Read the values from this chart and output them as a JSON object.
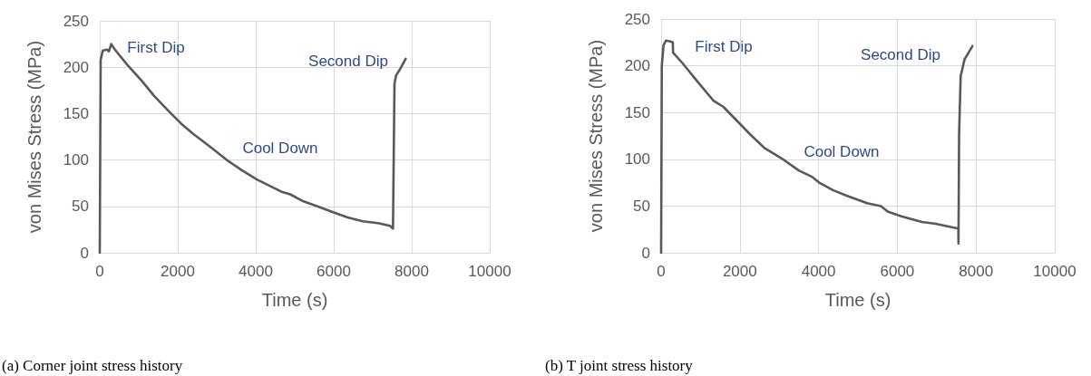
{
  "chart_data": [
    {
      "type": "line",
      "xlabel": "Time (s)",
      "ylabel": "von Mises Stress (MPa)",
      "xlim": [
        0,
        10000
      ],
      "xticks": [
        0,
        2000,
        4000,
        6000,
        8000,
        10000
      ],
      "ylim": [
        0,
        250
      ],
      "yticks": [
        0,
        50,
        100,
        150,
        200,
        250
      ],
      "grid": true,
      "marker": "none",
      "line_style": "solid",
      "series": [
        {
          "color": "#595959",
          "x": [
            0,
            23,
            78,
            194,
            233,
            295,
            388,
            698,
            1085,
            1395,
            1783,
            2093,
            2403,
            2558,
            2868,
            3256,
            3643,
            4031,
            4651,
            4884,
            5194,
            5581,
            5969,
            6357,
            6744,
            7132,
            7442,
            7519,
            7535,
            7558,
            7597,
            7674,
            7845
          ],
          "values": [
            0,
            208,
            218,
            219,
            217,
            225,
            219,
            203,
            185,
            169,
            152,
            139,
            128,
            123,
            113,
            100,
            89,
            79,
            66,
            63,
            56,
            50,
            44,
            38,
            34,
            32,
            29,
            26,
            90,
            182,
            191,
            196,
            209
          ]
        }
      ],
      "annotations": [
        "First Dip",
        "Cool Down",
        "Second Dip",
        "(a) Corner joint stress history"
      ]
    },
    {
      "type": "line",
      "xlabel": "Time (s)",
      "ylabel": "von Mises Stress (MPa)",
      "xlim": [
        0,
        10000
      ],
      "xticks": [
        0,
        2000,
        4000,
        6000,
        8000,
        10000
      ],
      "ylim": [
        0,
        250
      ],
      "yticks": [
        0,
        50,
        100,
        150,
        200,
        250
      ],
      "grid": true,
      "marker": "none",
      "line_style": "solid",
      "series": [
        {
          "color": "#595959",
          "x": [
            0,
            17,
            61,
            122,
            235,
            296,
            304,
            539,
            887,
            1322,
            1583,
            1930,
            2278,
            2626,
            3061,
            3496,
            3843,
            4017,
            4365,
            4713,
            5235,
            5583,
            5757,
            6104,
            6626,
            6974,
            7550,
            7555,
            7570,
            7610,
            7710,
            7910
          ],
          "values": [
            0,
            200,
            222,
            227,
            226,
            225,
            214,
            203,
            185,
            163,
            156,
            141,
            126,
            112,
            101,
            88,
            81,
            75,
            67,
            61,
            53,
            50,
            44,
            39,
            33,
            31,
            26,
            10,
            126,
            189,
            207,
            221
          ]
        }
      ],
      "annotations": [
        "First Dip",
        "Cool Down",
        "Second Dip",
        "(b) T joint stress history"
      ]
    }
  ]
}
